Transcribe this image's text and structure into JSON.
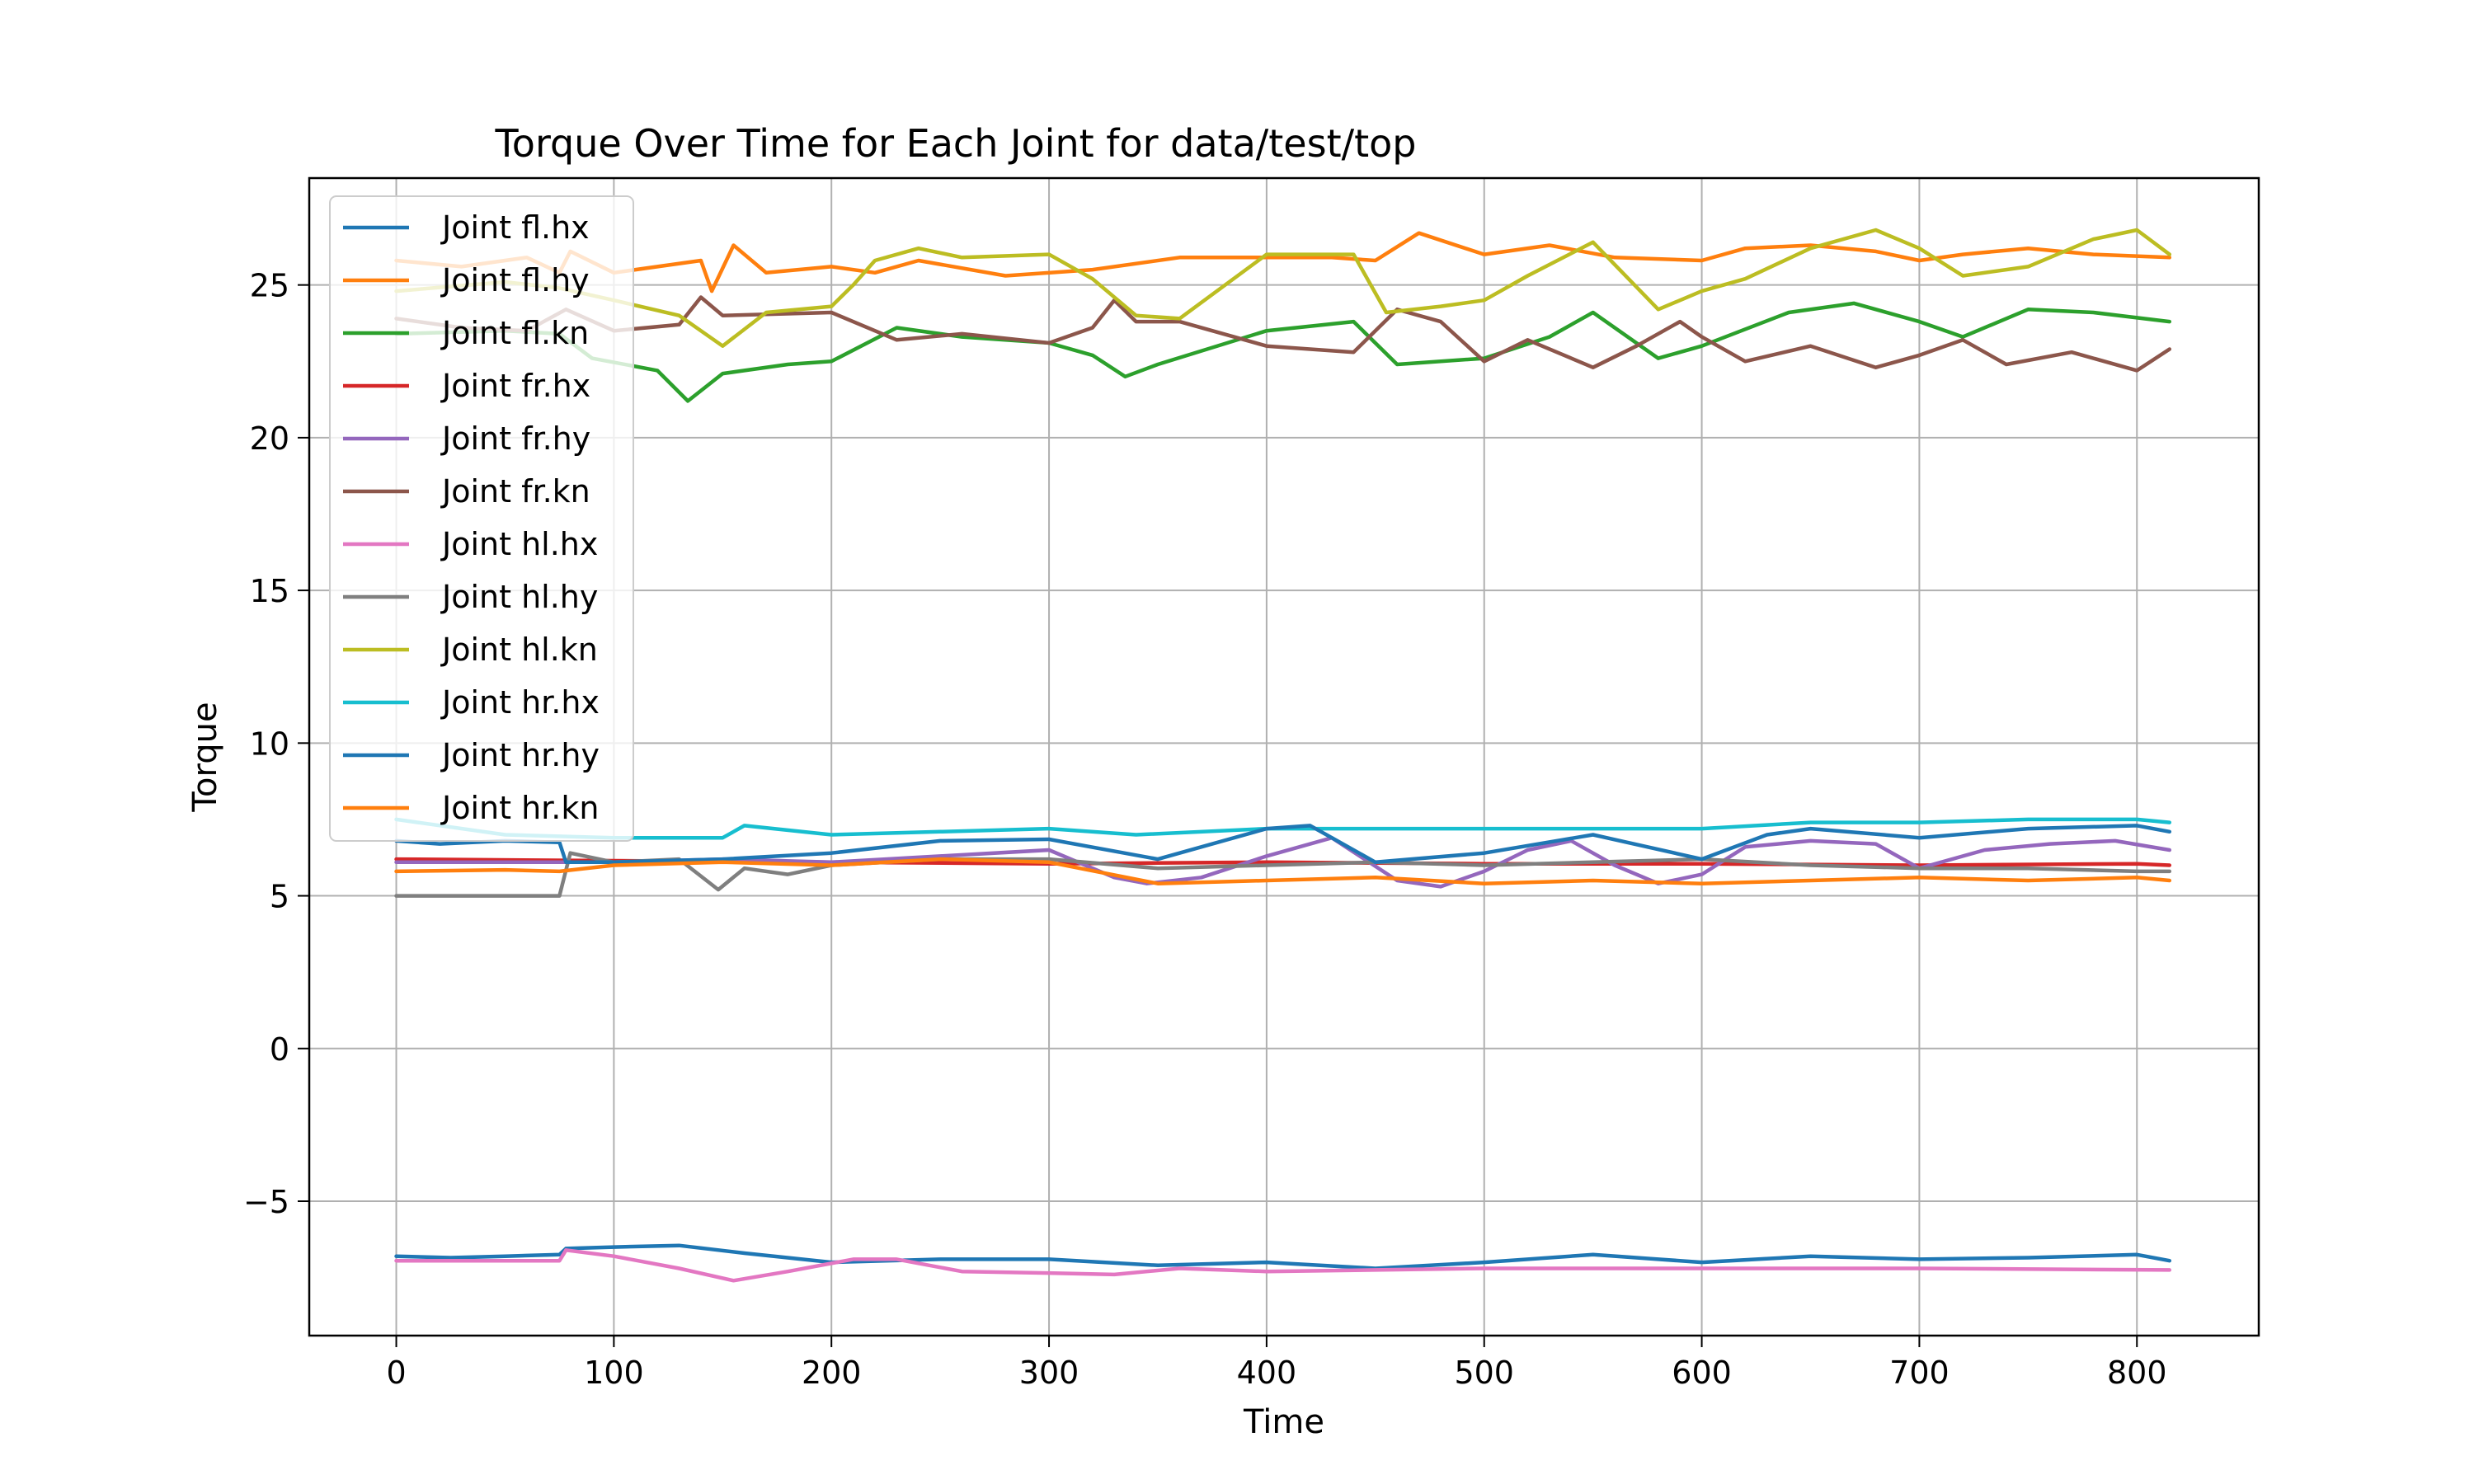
{
  "chart_data": {
    "type": "line",
    "title": "Torque Over Time for Each Joint for data/test/top",
    "xlabel": "Time",
    "ylabel": "Torque",
    "xlim": [
      -40,
      856
    ],
    "ylim": [
      -9.4,
      28.5
    ],
    "xticks": [
      0,
      100,
      200,
      300,
      400,
      500,
      600,
      700,
      800
    ],
    "yticks": [
      -5,
      0,
      5,
      10,
      15,
      20,
      25
    ],
    "ytick_labels": [
      "−5",
      "0",
      "5",
      "10",
      "15",
      "20",
      "25"
    ],
    "grid": true,
    "legend_position": "upper-left",
    "series": [
      {
        "name": "Joint fl.hx",
        "color": "#1f77b4",
        "x": [
          0,
          25,
          50,
          75,
          78,
          100,
          130,
          160,
          200,
          250,
          300,
          350,
          400,
          450,
          500,
          550,
          600,
          650,
          700,
          750,
          800,
          815
        ],
        "y": [
          -6.8,
          -6.85,
          -6.8,
          -6.75,
          -6.55,
          -6.5,
          -6.45,
          -6.7,
          -7.0,
          -6.9,
          -6.9,
          -7.1,
          -7.0,
          -7.2,
          -7.0,
          -6.75,
          -7.0,
          -6.8,
          -6.9,
          -6.85,
          -6.75,
          -6.95
        ]
      },
      {
        "name": "Joint fl.hy",
        "color": "#ff7f0e",
        "x": [
          0,
          30,
          60,
          75,
          80,
          100,
          140,
          145,
          155,
          170,
          200,
          220,
          240,
          280,
          320,
          360,
          400,
          430,
          450,
          470,
          500,
          530,
          560,
          600,
          620,
          650,
          680,
          700,
          720,
          750,
          780,
          815
        ],
        "y": [
          25.8,
          25.6,
          25.9,
          25.4,
          26.1,
          25.4,
          25.8,
          24.8,
          26.3,
          25.4,
          25.6,
          25.4,
          25.8,
          25.3,
          25.5,
          25.9,
          25.9,
          25.9,
          25.8,
          26.7,
          26.0,
          26.3,
          25.9,
          25.8,
          26.2,
          26.3,
          26.1,
          25.8,
          26.0,
          26.2,
          26.0,
          25.9
        ]
      },
      {
        "name": "Joint fl.kn",
        "color": "#2ca02c",
        "x": [
          0,
          50,
          75,
          90,
          120,
          134,
          150,
          180,
          200,
          230,
          260,
          300,
          320,
          335,
          350,
          400,
          440,
          460,
          500,
          530,
          550,
          580,
          600,
          640,
          670,
          700,
          720,
          750,
          780,
          815
        ],
        "y": [
          23.4,
          23.5,
          23.4,
          22.6,
          22.2,
          21.2,
          22.1,
          22.4,
          22.5,
          23.6,
          23.3,
          23.1,
          22.7,
          22.0,
          22.4,
          23.5,
          23.8,
          22.4,
          22.6,
          23.3,
          24.1,
          22.6,
          23.0,
          24.1,
          24.4,
          23.8,
          23.3,
          24.2,
          24.1,
          23.8
        ]
      },
      {
        "name": "Joint fr.hx",
        "color": "#d62728",
        "x": [
          0,
          100,
          200,
          300,
          400,
          500,
          600,
          700,
          800,
          815
        ],
        "y": [
          6.2,
          6.15,
          6.1,
          6.05,
          6.1,
          6.05,
          6.05,
          6.0,
          6.05,
          6.0
        ]
      },
      {
        "name": "Joint fr.hy",
        "color": "#9467bd",
        "x": [
          0,
          78,
          100,
          150,
          200,
          250,
          300,
          330,
          345,
          370,
          400,
          430,
          460,
          480,
          500,
          520,
          540,
          560,
          580,
          600,
          620,
          650,
          680,
          700,
          730,
          760,
          790,
          815
        ],
        "y": [
          6.1,
          6.1,
          6.1,
          6.2,
          6.1,
          6.3,
          6.5,
          5.6,
          5.4,
          5.6,
          6.3,
          6.9,
          5.5,
          5.3,
          5.8,
          6.5,
          6.8,
          6.0,
          5.4,
          5.7,
          6.6,
          6.8,
          6.7,
          5.9,
          6.5,
          6.7,
          6.8,
          6.5
        ]
      },
      {
        "name": "Joint fr.kn",
        "color": "#8c564b",
        "x": [
          0,
          30,
          60,
          78,
          100,
          130,
          140,
          150,
          200,
          230,
          260,
          300,
          320,
          330,
          340,
          360,
          400,
          440,
          460,
          480,
          500,
          520,
          550,
          570,
          590,
          600,
          620,
          650,
          680,
          700,
          720,
          740,
          770,
          800,
          815
        ],
        "y": [
          23.9,
          23.6,
          23.5,
          24.2,
          23.5,
          23.7,
          24.6,
          24.0,
          24.1,
          23.2,
          23.4,
          23.1,
          23.6,
          24.5,
          23.8,
          23.8,
          23.0,
          22.8,
          24.2,
          23.8,
          22.5,
          23.2,
          22.3,
          23.0,
          23.8,
          23.3,
          22.5,
          23.0,
          22.3,
          22.7,
          23.2,
          22.4,
          22.8,
          22.2,
          22.9
        ]
      },
      {
        "name": "Joint hl.hx",
        "color": "#e377c2",
        "x": [
          0,
          40,
          75,
          78,
          100,
          130,
          155,
          180,
          210,
          230,
          260,
          300,
          330,
          360,
          400,
          500,
          600,
          700,
          815
        ],
        "y": [
          -6.95,
          -6.95,
          -6.95,
          -6.6,
          -6.8,
          -7.2,
          -7.6,
          -7.3,
          -6.9,
          -6.9,
          -7.3,
          -7.35,
          -7.4,
          -7.2,
          -7.3,
          -7.2,
          -7.2,
          -7.2,
          -7.25
        ]
      },
      {
        "name": "Joint hl.hy",
        "color": "#7f7f7f",
        "x": [
          0,
          40,
          75,
          80,
          100,
          130,
          148,
          160,
          180,
          200,
          250,
          300,
          350,
          400,
          450,
          500,
          550,
          600,
          650,
          700,
          750,
          800,
          815
        ],
        "y": [
          5.0,
          5.0,
          5.0,
          6.4,
          6.1,
          6.2,
          5.2,
          5.9,
          5.7,
          6.0,
          6.2,
          6.2,
          5.9,
          6.0,
          6.1,
          6.0,
          6.1,
          6.2,
          6.0,
          5.9,
          5.9,
          5.8,
          5.8
        ]
      },
      {
        "name": "Joint hl.kn",
        "color": "#bcbd22",
        "x": [
          0,
          50,
          75,
          100,
          130,
          150,
          170,
          200,
          210,
          220,
          240,
          260,
          300,
          320,
          340,
          360,
          400,
          440,
          455,
          480,
          500,
          520,
          550,
          580,
          600,
          620,
          650,
          680,
          700,
          720,
          750,
          780,
          800,
          815
        ],
        "y": [
          24.8,
          25.1,
          24.9,
          24.5,
          24.0,
          23.0,
          24.1,
          24.3,
          25.0,
          25.8,
          26.2,
          25.9,
          26.0,
          25.2,
          24.0,
          23.9,
          26.0,
          26.0,
          24.1,
          24.3,
          24.5,
          25.3,
          26.4,
          24.2,
          24.8,
          25.2,
          26.2,
          26.8,
          26.2,
          25.3,
          25.6,
          26.5,
          26.8,
          26.0
        ]
      },
      {
        "name": "Joint hr.hx",
        "color": "#17becf",
        "x": [
          0,
          50,
          100,
          150,
          160,
          200,
          250,
          300,
          340,
          400,
          450,
          500,
          550,
          600,
          650,
          700,
          750,
          800,
          815
        ],
        "y": [
          7.5,
          7.0,
          6.9,
          6.9,
          7.3,
          7.0,
          7.1,
          7.2,
          7.0,
          7.2,
          7.2,
          7.2,
          7.2,
          7.2,
          7.4,
          7.4,
          7.5,
          7.5,
          7.4
        ]
      },
      {
        "name": "Joint hr.hy",
        "color": "#1f77b4",
        "x": [
          0,
          20,
          50,
          75,
          78,
          100,
          150,
          200,
          250,
          300,
          350,
          400,
          420,
          450,
          500,
          550,
          600,
          630,
          650,
          700,
          750,
          800,
          815
        ],
        "y": [
          6.8,
          6.7,
          6.8,
          6.75,
          6.1,
          6.1,
          6.2,
          6.4,
          6.8,
          6.85,
          6.2,
          7.2,
          7.3,
          6.1,
          6.4,
          7.0,
          6.2,
          7.0,
          7.2,
          6.9,
          7.2,
          7.3,
          7.1
        ]
      },
      {
        "name": "Joint hr.kn",
        "color": "#ff7f0e",
        "x": [
          0,
          50,
          75,
          100,
          150,
          200,
          250,
          300,
          350,
          400,
          450,
          500,
          550,
          600,
          650,
          700,
          750,
          800,
          815
        ],
        "y": [
          5.8,
          5.85,
          5.8,
          6.0,
          6.1,
          6.0,
          6.2,
          6.1,
          5.4,
          5.5,
          5.6,
          5.4,
          5.5,
          5.4,
          5.5,
          5.6,
          5.5,
          5.6,
          5.5
        ]
      }
    ]
  }
}
